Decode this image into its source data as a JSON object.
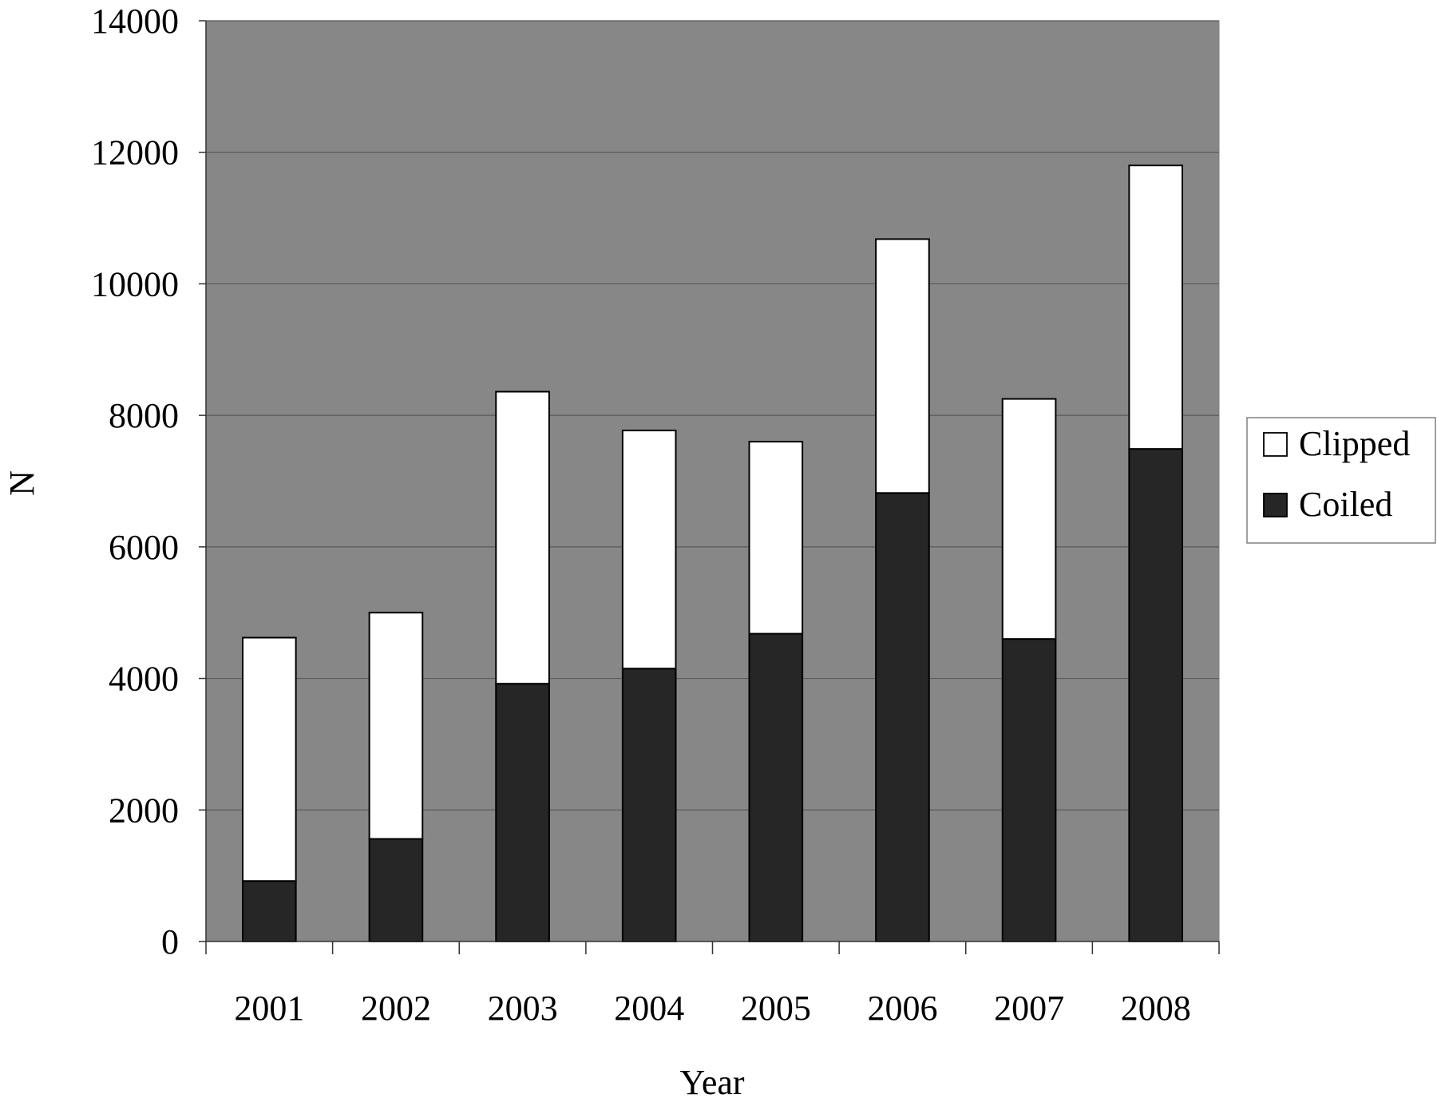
{
  "chart_data": {
    "type": "bar",
    "stacked": true,
    "title": "",
    "xlabel": "Year",
    "ylabel": "N",
    "ylim": [
      0,
      14000
    ],
    "yticks": [
      0,
      2000,
      4000,
      6000,
      8000,
      10000,
      12000,
      14000
    ],
    "categories": [
      "2001",
      "2002",
      "2003",
      "2004",
      "2005",
      "2006",
      "2007",
      "2008"
    ],
    "series": [
      {
        "name": "Coiled",
        "color": "#262626",
        "values": [
          920,
          1560,
          3920,
          4150,
          4680,
          6820,
          4600,
          7490
        ]
      },
      {
        "name": "Clipped",
        "color": "#ffffff",
        "values": [
          3700,
          3440,
          4440,
          3620,
          2920,
          3860,
          3650,
          4310
        ]
      }
    ],
    "legend_order": [
      "Clipped",
      "Coiled"
    ],
    "legend_position": "right",
    "plot_background": "#878787",
    "grid": true
  }
}
